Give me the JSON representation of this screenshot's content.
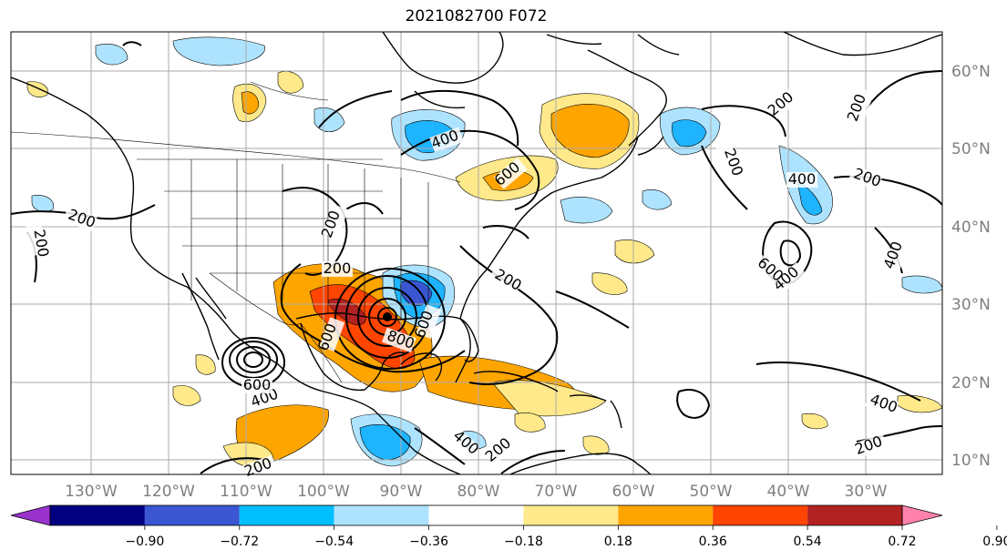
{
  "title": "2021082700 F072",
  "map": {
    "lat_labels": [
      "60°N",
      "50°N",
      "40°N",
      "30°N",
      "20°N",
      "10°N"
    ],
    "lon_labels": [
      "130°W",
      "120°W",
      "110°W",
      "100°W",
      "90°W",
      "80°W",
      "70°W",
      "60°W",
      "50°W",
      "40°W",
      "30°W"
    ],
    "contour_labels": [
      "200",
      "200",
      "200",
      "200",
      "200",
      "200",
      "200",
      "200",
      "200",
      "200",
      "200",
      "200",
      "400",
      "400",
      "400",
      "400",
      "400",
      "400",
      "400",
      "600",
      "600",
      "600",
      "600",
      "600",
      "800"
    ],
    "colors": {
      "fill_pos1": "#ffe98a",
      "fill_pos2": "#ffa500",
      "fill_pos3": "#ff4500",
      "fill_pos4": "#b22222",
      "fill_neg1": "#aee3ff",
      "fill_neg2": "#1fb4ff",
      "fill_neg3": "#3a56d1",
      "coast": "#000000"
    }
  },
  "colorbar": {
    "ticks": [
      "−0.90",
      "−0.72",
      "−0.54",
      "−0.36",
      "−0.18",
      "0.18",
      "0.36",
      "0.54",
      "0.72",
      "0.90"
    ],
    "colors": [
      "#9932cc",
      "#000080",
      "#3a56d1",
      "#00bfff",
      "#aee3ff",
      "#ffffff",
      "#ffe98a",
      "#ffa500",
      "#ff4500",
      "#b22222",
      "#ff82ab"
    ],
    "levels": [
      -0.9,
      -0.72,
      -0.54,
      -0.36,
      -0.18,
      0.18,
      0.36,
      0.54,
      0.72,
      0.9
    ]
  }
}
